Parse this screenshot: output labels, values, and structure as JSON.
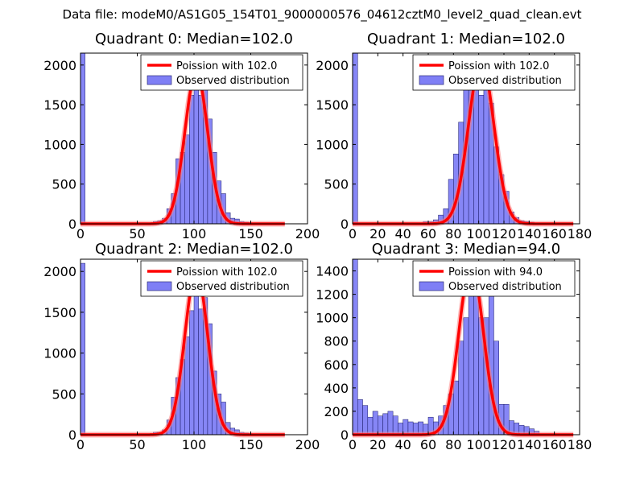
{
  "figure": {
    "suptitle": "Data file: modeM0/AS1G05_154T01_9000000576_04612cztM0_level2_quad_clean.evt"
  },
  "colors": {
    "bars": "#7f7ff5",
    "bar_edge": "#1a1a66",
    "curve": "#ff0000",
    "curve_glow": "#ff8080"
  },
  "chart_data": [
    {
      "type": "bar",
      "title": "Quadrant 0: Median=102.0",
      "xlim": [
        0,
        200
      ],
      "ylim": [
        0,
        2150
      ],
      "xticks": [
        0,
        50,
        100,
        150,
        200
      ],
      "yticks": [
        0,
        500,
        1000,
        1500,
        2000
      ],
      "bin_width": 4,
      "bins": [
        [
          0,
          2150
        ],
        [
          64,
          30
        ],
        [
          68,
          40
        ],
        [
          72,
          70
        ],
        [
          76,
          190
        ],
        [
          80,
          380
        ],
        [
          84,
          820
        ],
        [
          88,
          900
        ],
        [
          92,
          1120
        ],
        [
          96,
          1620
        ],
        [
          100,
          2050
        ],
        [
          104,
          1620
        ],
        [
          108,
          1720
        ],
        [
          112,
          1320
        ],
        [
          116,
          900
        ],
        [
          120,
          540
        ],
        [
          124,
          380
        ],
        [
          128,
          140
        ],
        [
          132,
          70
        ],
        [
          136,
          60
        ],
        [
          140,
          30
        ],
        [
          144,
          20
        ]
      ],
      "curve": {
        "name": "Poission with 102.0",
        "mean": 102.0,
        "peak": 1910,
        "x": [
          0,
          180
        ]
      },
      "legend": [
        "Poission with 102.0",
        "Observed distribution"
      ]
    },
    {
      "type": "bar",
      "title": "Quadrant 1: Median=102.0",
      "xlim": [
        0,
        180
      ],
      "ylim": [
        0,
        2150
      ],
      "xticks": [
        0,
        20,
        40,
        60,
        80,
        100,
        120,
        140,
        160,
        180
      ],
      "yticks": [
        0,
        500,
        1000,
        1500,
        2000
      ],
      "bin_width": 4,
      "bins": [
        [
          0,
          2150
        ],
        [
          56,
          30
        ],
        [
          60,
          30
        ],
        [
          64,
          50
        ],
        [
          68,
          110
        ],
        [
          72,
          190
        ],
        [
          76,
          560
        ],
        [
          80,
          880
        ],
        [
          84,
          1280
        ],
        [
          88,
          1700
        ],
        [
          92,
          1900
        ],
        [
          96,
          2000
        ],
        [
          100,
          1620
        ],
        [
          104,
          2000
        ],
        [
          108,
          1520
        ],
        [
          112,
          970
        ],
        [
          116,
          620
        ],
        [
          120,
          410
        ],
        [
          124,
          150
        ],
        [
          128,
          80
        ],
        [
          132,
          40
        ],
        [
          136,
          30
        ],
        [
          140,
          20
        ]
      ],
      "curve": {
        "name": "Poission with 102.0",
        "mean": 102.0,
        "peak": 2050,
        "x": [
          0,
          175
        ]
      },
      "legend": [
        "Poission with 102.0",
        "Observed distribution"
      ]
    },
    {
      "type": "bar",
      "title": "Quadrant 2: Median=102.0",
      "xlim": [
        0,
        200
      ],
      "ylim": [
        0,
        2150
      ],
      "xticks": [
        0,
        50,
        100,
        150,
        200
      ],
      "yticks": [
        0,
        500,
        1000,
        1500,
        2000
      ],
      "bin_width": 4,
      "bins": [
        [
          0,
          2100
        ],
        [
          64,
          30
        ],
        [
          68,
          30
        ],
        [
          72,
          60
        ],
        [
          76,
          180
        ],
        [
          80,
          460
        ],
        [
          84,
          700
        ],
        [
          88,
          920
        ],
        [
          92,
          1200
        ],
        [
          96,
          1520
        ],
        [
          100,
          2030
        ],
        [
          104,
          1540
        ],
        [
          108,
          1680
        ],
        [
          112,
          1360
        ],
        [
          116,
          780
        ],
        [
          120,
          500
        ],
        [
          124,
          400
        ],
        [
          128,
          150
        ],
        [
          132,
          80
        ],
        [
          136,
          60
        ],
        [
          140,
          30
        ],
        [
          144,
          20
        ]
      ],
      "curve": {
        "name": "Poission with 102.0",
        "mean": 102.0,
        "peak": 2000,
        "x": [
          0,
          180
        ]
      },
      "legend": [
        "Poission with 102.0",
        "Observed distribution"
      ]
    },
    {
      "type": "bar",
      "title": "Quadrant 3: Median=94.0",
      "xlim": [
        0,
        180
      ],
      "ylim": [
        0,
        1500
      ],
      "xticks": [
        0,
        20,
        40,
        60,
        80,
        100,
        120,
        140,
        160,
        180
      ],
      "yticks": [
        0,
        200,
        400,
        600,
        800,
        1000,
        1200,
        1400
      ],
      "bin_width": 4,
      "bins": [
        [
          0,
          1500
        ],
        [
          4,
          300
        ],
        [
          8,
          250
        ],
        [
          12,
          150
        ],
        [
          16,
          200
        ],
        [
          20,
          160
        ],
        [
          24,
          180
        ],
        [
          28,
          200
        ],
        [
          32,
          160
        ],
        [
          36,
          100
        ],
        [
          40,
          130
        ],
        [
          44,
          110
        ],
        [
          48,
          100
        ],
        [
          52,
          110
        ],
        [
          56,
          90
        ],
        [
          60,
          150
        ],
        [
          64,
          110
        ],
        [
          68,
          160
        ],
        [
          72,
          250
        ],
        [
          76,
          350
        ],
        [
          80,
          460
        ],
        [
          84,
          800
        ],
        [
          88,
          1000
        ],
        [
          92,
          1250
        ],
        [
          96,
          1300
        ],
        [
          100,
          1000
        ],
        [
          104,
          1000
        ],
        [
          108,
          1300
        ],
        [
          112,
          800
        ],
        [
          116,
          260
        ],
        [
          120,
          260
        ],
        [
          124,
          120
        ],
        [
          128,
          100
        ],
        [
          132,
          80
        ],
        [
          136,
          70
        ],
        [
          140,
          50
        ],
        [
          144,
          30
        ]
      ],
      "curve": {
        "name": "Poission with 94.0",
        "mean": 94.0,
        "peak": 1450,
        "x": [
          0,
          175
        ]
      },
      "legend": [
        "Poission with 94.0",
        "Observed distribution"
      ]
    }
  ]
}
